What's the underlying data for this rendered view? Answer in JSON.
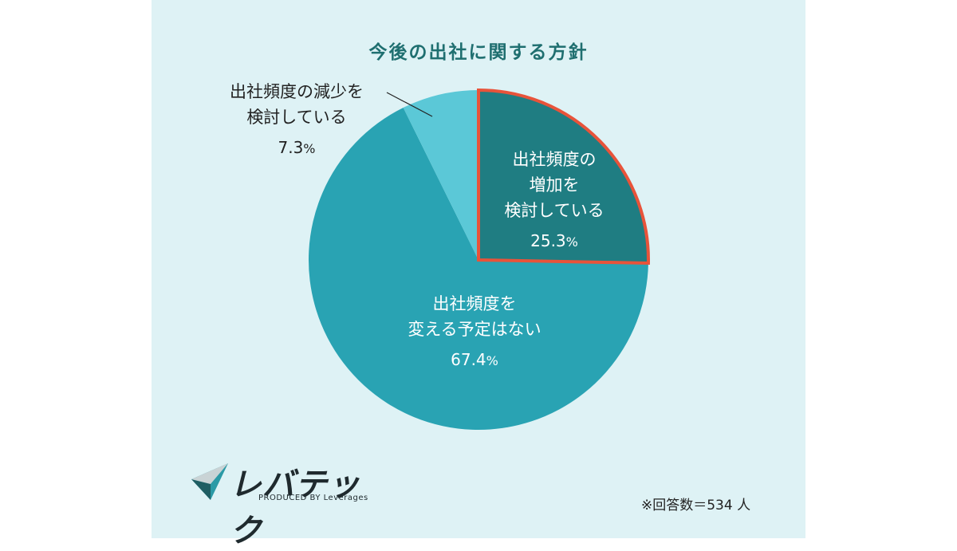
{
  "chart_data": {
    "type": "pie",
    "title": "今後の出社に関する方針",
    "slices": [
      {
        "label_lines": [
          "出社頻度の",
          "増加を",
          "検討している"
        ],
        "value": 25.3,
        "value_label": "25.3",
        "color": "#1f7d82",
        "highlight": true
      },
      {
        "label_lines": [
          "出社頻度を",
          "変える予定はない"
        ],
        "value": 67.4,
        "value_label": "67.4",
        "color": "#29a3b3",
        "highlight": false
      },
      {
        "label_lines": [
          "出社頻度の減少を",
          "検討している"
        ],
        "value": 7.3,
        "value_label": "7.3",
        "color": "#5bc8d7",
        "highlight": false
      }
    ],
    "unit": "%",
    "highlight_color": "#e8533a"
  },
  "logo": {
    "name": "レバテック",
    "tagline": "PRODUCED BY Leverages"
  },
  "footnote": "※回答数＝534 人"
}
